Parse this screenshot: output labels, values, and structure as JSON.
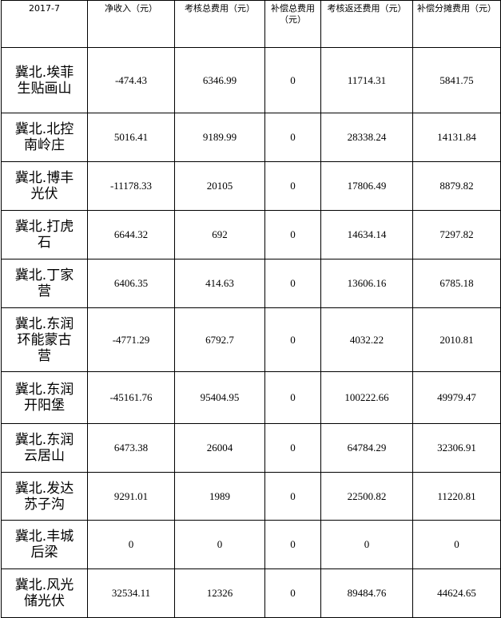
{
  "table": {
    "header": [
      "2017-7",
      "净收入（元）",
      "考核总费用（元）",
      "补偿总费用（元）",
      "考核返还费用（元）",
      "补偿分摊费用（元）"
    ],
    "rows": [
      [
        "冀北.埃菲生贴画山",
        "-474.43",
        "6346.99",
        "0",
        "11714.31",
        "5841.75"
      ],
      [
        "冀北.北控南岭庄",
        "5016.41",
        "9189.99",
        "0",
        "28338.24",
        "14131.84"
      ],
      [
        "冀北.博丰光伏",
        "-11178.33",
        "20105",
        "0",
        "17806.49",
        "8879.82"
      ],
      [
        "冀北.打虎石",
        "6644.32",
        "692",
        "0",
        "14634.14",
        "7297.82"
      ],
      [
        "冀北.丁家营",
        "6406.35",
        "414.63",
        "0",
        "13606.16",
        "6785.18"
      ],
      [
        "冀北.东润环能蒙古营",
        "-4771.29",
        "6792.7",
        "0",
        "4032.22",
        "2010.81"
      ],
      [
        "冀北.东润开阳堡",
        "-45161.76",
        "95404.95",
        "0",
        "100222.66",
        "49979.47"
      ],
      [
        "冀北.东润云居山",
        "6473.38",
        "26004",
        "0",
        "64784.29",
        "32306.91"
      ],
      [
        "冀北.发达苏子沟",
        "9291.01",
        "1989",
        "0",
        "22500.82",
        "11220.81"
      ],
      [
        "冀北.丰城后梁",
        "0",
        "0",
        "0",
        "0",
        "0"
      ],
      [
        "冀北.风光储光伏",
        "32534.11",
        "12326",
        "0",
        "89484.76",
        "44624.65"
      ]
    ]
  }
}
